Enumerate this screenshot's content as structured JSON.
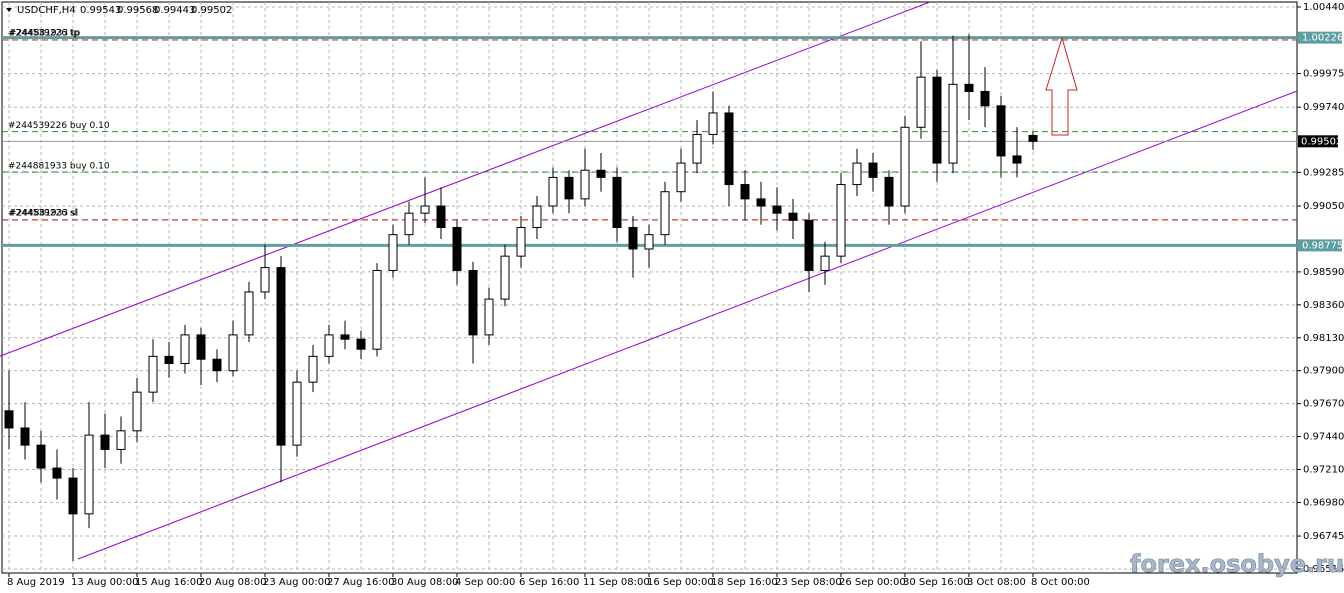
{
  "chart_data": {
    "type": "candlestick",
    "symbol": "USDCHF,H4",
    "watermark": "forex.osobye.ru",
    "categories": [
      "8 Aug 2019",
      null,
      null,
      null,
      "13 Aug 00:00",
      null,
      null,
      null,
      "15 Aug 16:00",
      null,
      null,
      null,
      "20 Aug 08:00",
      null,
      null,
      null,
      "23 Aug 00:00",
      null,
      null,
      null,
      "27 Aug 16:00",
      null,
      null,
      null,
      "30 Aug 08:00",
      null,
      null,
      null,
      "4 Sep 00:00",
      null,
      null,
      null,
      "6 Sep 16:00",
      null,
      null,
      null,
      "11 Sep 08:00",
      null,
      null,
      null,
      "16 Sep 00:00",
      null,
      null,
      null,
      "18 Sep 16:00",
      null,
      null,
      null,
      "23 Sep 08:00",
      null,
      null,
      null,
      "26 Sep 00:00",
      null,
      null,
      null,
      "30 Sep 16:00",
      null,
      null,
      null,
      "3 Oct 08:00",
      null,
      null,
      null,
      "8 Oct 00:00"
    ],
    "ohlc": [
      [
        0.9762,
        0.979,
        0.9735,
        0.975
      ],
      [
        0.975,
        0.9768,
        0.9728,
        0.9738
      ],
      [
        0.9738,
        0.9748,
        0.9712,
        0.9722
      ],
      [
        0.9722,
        0.9735,
        0.97,
        0.9715
      ],
      [
        0.9715,
        0.9722,
        0.9657,
        0.969
      ],
      [
        0.969,
        0.9768,
        0.968,
        0.9745
      ],
      [
        0.9745,
        0.976,
        0.9722,
        0.9735
      ],
      [
        0.9735,
        0.9758,
        0.9725,
        0.9748
      ],
      [
        0.9748,
        0.9785,
        0.974,
        0.9775
      ],
      [
        0.9775,
        0.9812,
        0.9768,
        0.98
      ],
      [
        0.98,
        0.981,
        0.9785,
        0.9795
      ],
      [
        0.9795,
        0.9822,
        0.9788,
        0.9815
      ],
      [
        0.9815,
        0.982,
        0.978,
        0.9798
      ],
      [
        0.9798,
        0.9805,
        0.9782,
        0.979
      ],
      [
        0.979,
        0.9825,
        0.9786,
        0.9815
      ],
      [
        0.9815,
        0.9852,
        0.981,
        0.9845
      ],
      [
        0.9845,
        0.9878,
        0.984,
        0.9862
      ],
      [
        0.9862,
        0.987,
        0.9712,
        0.9738
      ],
      [
        0.9738,
        0.979,
        0.973,
        0.9782
      ],
      [
        0.9782,
        0.9808,
        0.9775,
        0.98
      ],
      [
        0.98,
        0.9822,
        0.9795,
        0.9815
      ],
      [
        0.9815,
        0.9825,
        0.9805,
        0.9812
      ],
      [
        0.9812,
        0.9818,
        0.9798,
        0.9805
      ],
      [
        0.9805,
        0.9865,
        0.98,
        0.986
      ],
      [
        0.986,
        0.9892,
        0.9855,
        0.9885
      ],
      [
        0.9885,
        0.9908,
        0.9878,
        0.99
      ],
      [
        0.99,
        0.9925,
        0.9893,
        0.9905
      ],
      [
        0.9905,
        0.9918,
        0.9882,
        0.989
      ],
      [
        0.989,
        0.9895,
        0.985,
        0.986
      ],
      [
        0.986,
        0.9866,
        0.9795,
        0.9815
      ],
      [
        0.9815,
        0.9848,
        0.9808,
        0.984
      ],
      [
        0.984,
        0.9878,
        0.9835,
        0.987
      ],
      [
        0.987,
        0.9898,
        0.9862,
        0.989
      ],
      [
        0.989,
        0.9912,
        0.9882,
        0.9905
      ],
      [
        0.9905,
        0.9932,
        0.99,
        0.9925
      ],
      [
        0.9925,
        0.993,
        0.99,
        0.991
      ],
      [
        0.991,
        0.9945,
        0.9905,
        0.993
      ],
      [
        0.993,
        0.9942,
        0.9915,
        0.9925
      ],
      [
        0.9925,
        0.9932,
        0.988,
        0.989
      ],
      [
        0.989,
        0.9898,
        0.9855,
        0.9875
      ],
      [
        0.9875,
        0.9892,
        0.9862,
        0.9885
      ],
      [
        0.9885,
        0.9922,
        0.9878,
        0.9915
      ],
      [
        0.9915,
        0.9945,
        0.9908,
        0.9935
      ],
      [
        0.9935,
        0.9965,
        0.9928,
        0.9955
      ],
      [
        0.9955,
        0.9985,
        0.9948,
        0.997
      ],
      [
        0.997,
        0.9975,
        0.9905,
        0.992
      ],
      [
        0.992,
        0.993,
        0.9895,
        0.991
      ],
      [
        0.991,
        0.9922,
        0.9892,
        0.9905
      ],
      [
        0.9905,
        0.9918,
        0.9888,
        0.99
      ],
      [
        0.99,
        0.991,
        0.9882,
        0.9895
      ],
      [
        0.9895,
        0.99,
        0.9845,
        0.986
      ],
      [
        0.986,
        0.988,
        0.985,
        0.987
      ],
      [
        0.987,
        0.9928,
        0.9865,
        0.992
      ],
      [
        0.992,
        0.9945,
        0.9912,
        0.9935
      ],
      [
        0.9935,
        0.9942,
        0.9915,
        0.9925
      ],
      [
        0.9925,
        0.993,
        0.9892,
        0.9905
      ],
      [
        0.9905,
        0.9968,
        0.99,
        0.996
      ],
      [
        0.996,
        1.002,
        0.9952,
        0.9995
      ],
      [
        0.9995,
        1.0,
        0.9922,
        0.9935
      ],
      [
        0.9935,
        1.0024,
        0.9928,
        0.999
      ],
      [
        0.999,
        1.0025,
        0.9965,
        0.9985
      ],
      [
        0.9985,
        1.0002,
        0.996,
        0.9975
      ],
      [
        0.9975,
        0.9982,
        0.9925,
        0.994
      ],
      [
        0.994,
        0.996,
        0.9925,
        0.9935
      ],
      [
        0.99543,
        0.99568,
        0.99443,
        0.99502
      ]
    ],
    "ylim": [
      0.96487,
      1.00475
    ],
    "yticks": [
      {
        "value": 1.0044,
        "label": "1.00440"
      },
      {
        "value": 0.99975,
        "label": "0.99975"
      },
      {
        "value": 0.9974,
        "label": "0.99740"
      },
      {
        "value": 0.99285,
        "label": "0.99285"
      },
      {
        "value": 0.9905,
        "label": "0.99050"
      },
      {
        "value": 0.9859,
        "label": "0.98590"
      },
      {
        "value": 0.9836,
        "label": "0.98360"
      },
      {
        "value": 0.9813,
        "label": "0.98130"
      },
      {
        "value": 0.979,
        "label": "0.97900"
      },
      {
        "value": 0.9767,
        "label": "0.97670"
      },
      {
        "value": 0.9744,
        "label": "0.97440"
      },
      {
        "value": 0.9721,
        "label": "0.97210"
      },
      {
        "value": 0.9698,
        "label": "0.96980"
      },
      {
        "value": 0.96745,
        "label": "0.96745"
      },
      {
        "value": 0.96515,
        "label": "0.96515"
      }
    ],
    "levels": [
      1.00226,
      0.98775
    ],
    "orders": [
      {
        "label": "#244539226 buy 0.10",
        "value": 0.9957
      },
      {
        "label": "#244881933 buy 0.10",
        "value": 0.99288
      }
    ],
    "stops": [
      {
        "label": "#244539226 tp",
        "value": 1.0021
      },
      {
        "label": "#244881933 tp",
        "value": 1.0021
      },
      {
        "label": "#244539226 sl",
        "value": 0.98953
      },
      {
        "label": "#244881933 sl",
        "value": 0.98953
      }
    ],
    "grid": true
  }
}
